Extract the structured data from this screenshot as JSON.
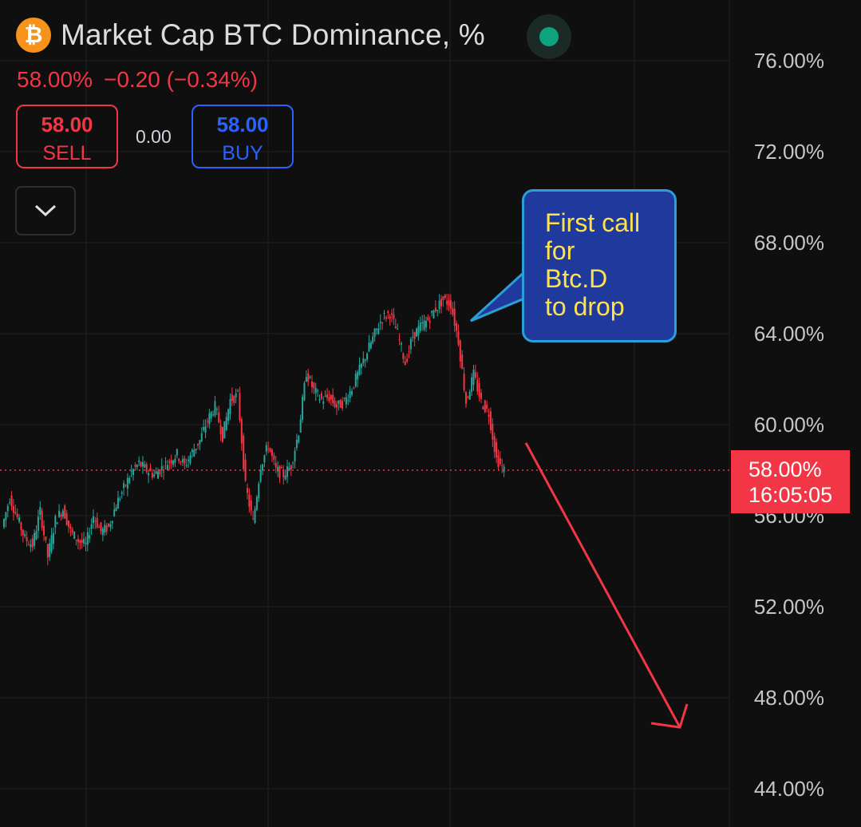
{
  "header": {
    "title": "Market Cap BTC Dominance, %",
    "icon": "bitcoin-icon",
    "status_color": "#0fa37f"
  },
  "quote": {
    "last": "58.00%",
    "change": "−0.20 (−0.34%)"
  },
  "trade": {
    "sell_price": "58.00",
    "sell_label": "SELL",
    "spread": "0.00",
    "buy_price": "58.00",
    "buy_label": "BUY"
  },
  "price_tag": {
    "value": "58.00%",
    "time": "16:05:05"
  },
  "note": {
    "lines": [
      "First call",
      "for",
      "Btc.D",
      "to drop"
    ]
  },
  "colors": {
    "up": "#26a69a",
    "down": "#f23645",
    "accent": "#2962ff"
  },
  "chart_data": {
    "type": "line",
    "title": "Market Cap BTC Dominance, %",
    "ylim": [
      44,
      76
    ],
    "y_ticks": [
      "76.00%",
      "72.00%",
      "68.00%",
      "64.00%",
      "60.00%",
      "56.00%",
      "52.00%",
      "48.00%",
      "44.00%"
    ],
    "grid": true,
    "current_value": 58.0,
    "series": [
      {
        "values": [
          55.5,
          56.8,
          55.9,
          55.0,
          54.7,
          56.2,
          54.2,
          55.8,
          56.3,
          55.3,
          54.9,
          54.7,
          56.0,
          55.3,
          55.5,
          56.5,
          57.2,
          57.9,
          58.3,
          58.0,
          57.8,
          58.1,
          58.4,
          58.7,
          58.2,
          58.8,
          59.3,
          60.2,
          60.8,
          59.5,
          61.1,
          61.3,
          57.3,
          55.7,
          58.2,
          59.1,
          58.0,
          57.8,
          58.2,
          59.7,
          62.3,
          61.5,
          61.1,
          61.2,
          60.8,
          61.0,
          61.6,
          62.4,
          63.2,
          64.0,
          64.7,
          64.9,
          64.0,
          62.7,
          63.9,
          64.3,
          64.6,
          65.1,
          65.5,
          65.3,
          63.7,
          61.0,
          62.2,
          61.0,
          60.5,
          58.5,
          58.0
        ]
      }
    ],
    "annotations": [
      {
        "type": "callout",
        "text": "First call for Btc.D to drop"
      },
      {
        "type": "arrow",
        "direction": "down",
        "from_y": 59.2,
        "to_y": 46.7
      }
    ]
  }
}
